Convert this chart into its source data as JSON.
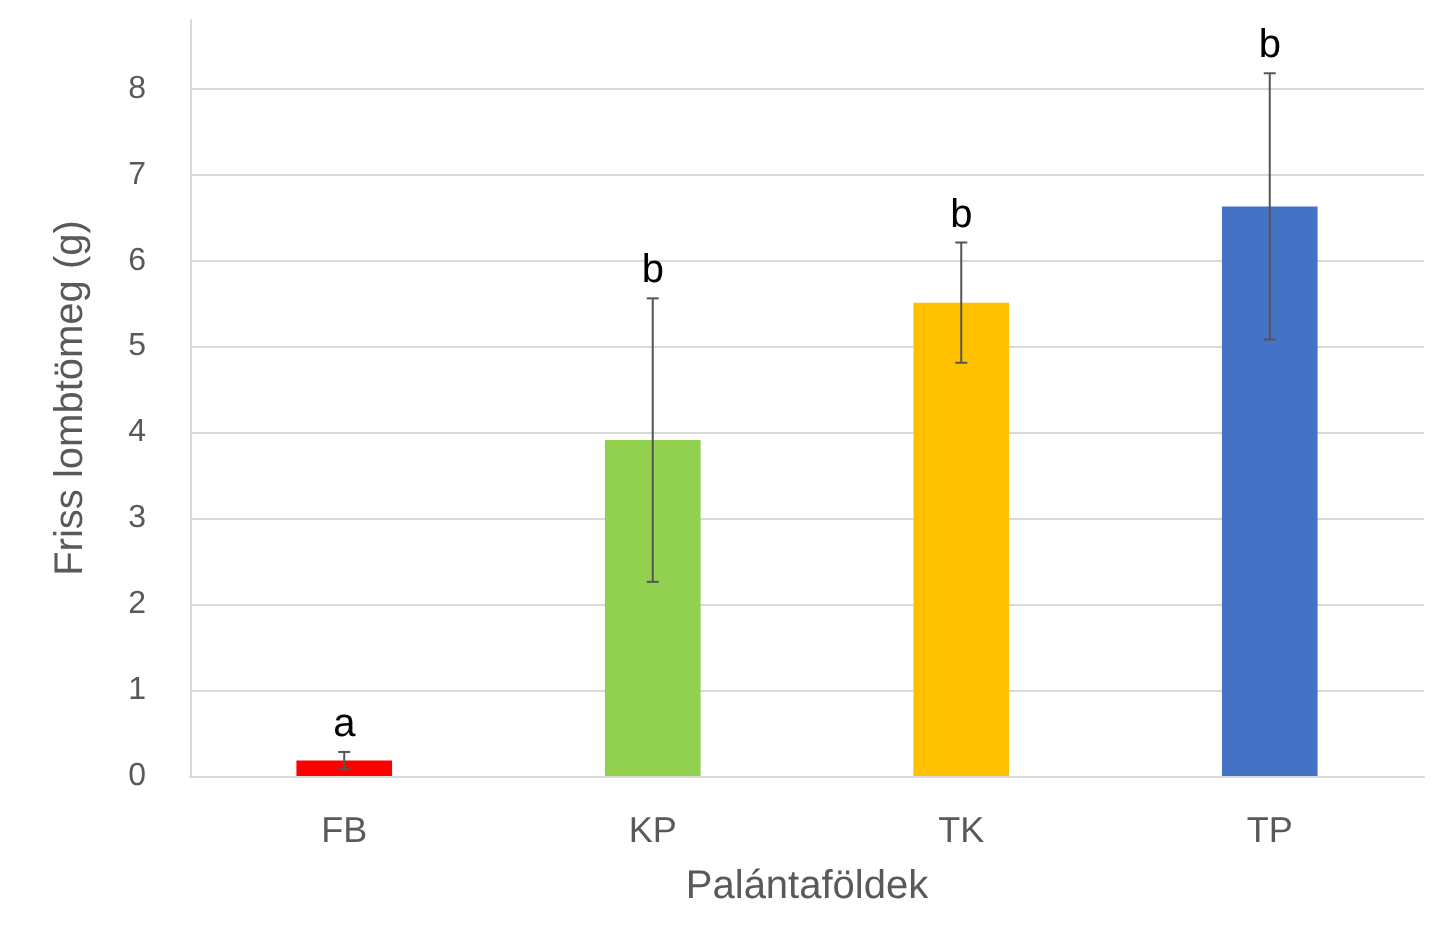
{
  "chart_data": {
    "type": "bar",
    "xlabel": "Palántaföldek",
    "ylabel": "Friss lombtömeg (g)",
    "categories": [
      "FB",
      "KP",
      "TK",
      "TP"
    ],
    "values": [
      0.18,
      3.91,
      5.51,
      6.63
    ],
    "colors": [
      "#ff0000",
      "#92d050",
      "#ffc000",
      "#4472c4"
    ],
    "errors": [
      0.1,
      1.65,
      0.7,
      1.55
    ],
    "ylim": [
      0,
      8.8
    ],
    "yticks": [
      0,
      1,
      2,
      3,
      4,
      5,
      6,
      7,
      8
    ],
    "grid": "y",
    "annotations": [
      {
        "text": "a",
        "x": "FB",
        "y": 0.28
      },
      {
        "text": "b",
        "x": "KP",
        "y": 5.56
      },
      {
        "text": "b",
        "x": "TK",
        "y": 6.21
      },
      {
        "text": "b",
        "x": "TP",
        "y": 8.18
      }
    ]
  }
}
